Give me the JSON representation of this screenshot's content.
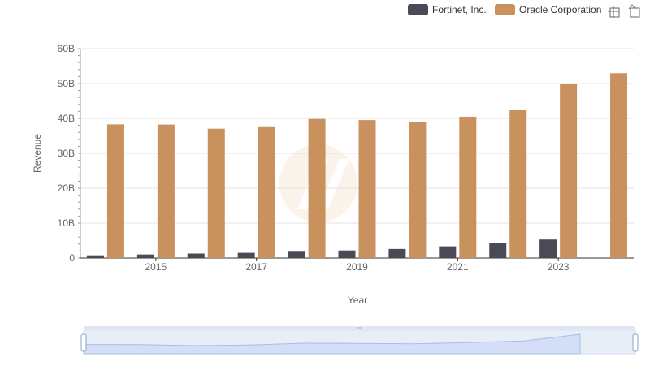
{
  "chart_data": {
    "type": "bar",
    "x": [
      2014,
      2015,
      2016,
      2017,
      2018,
      2019,
      2020,
      2021,
      2022,
      2023,
      2024
    ],
    "x_tick_labels": [
      "2015",
      "2017",
      "2019",
      "2021",
      "2023"
    ],
    "xlabel": "Year",
    "ylabel": "Revenue",
    "ylim": [
      0,
      60000000000
    ],
    "y_ticks": [
      0,
      10000000000,
      20000000000,
      30000000000,
      40000000000,
      50000000000,
      60000000000
    ],
    "y_tick_labels": [
      "0",
      "10B",
      "20B",
      "30B",
      "40B",
      "50B",
      "60B"
    ],
    "grid": true,
    "legend_position": "top-right",
    "series": [
      {
        "name": "Fortinet, Inc.",
        "color": "#4a4a56",
        "values": [
          770000000,
          1010000000,
          1280000000,
          1490000000,
          1800000000,
          2160000000,
          2590000000,
          3340000000,
          4420000000,
          5300000000,
          null
        ]
      },
      {
        "name": "Oracle Corporation",
        "color": "#c9915e",
        "values": [
          38280000000,
          38230000000,
          37050000000,
          37730000000,
          39830000000,
          39510000000,
          39070000000,
          40480000000,
          42440000000,
          49950000000,
          52960000000
        ]
      }
    ]
  },
  "toolbox": {
    "zoom_icon": "zoom-select-icon",
    "reset_icon": "zoom-reset-icon"
  }
}
